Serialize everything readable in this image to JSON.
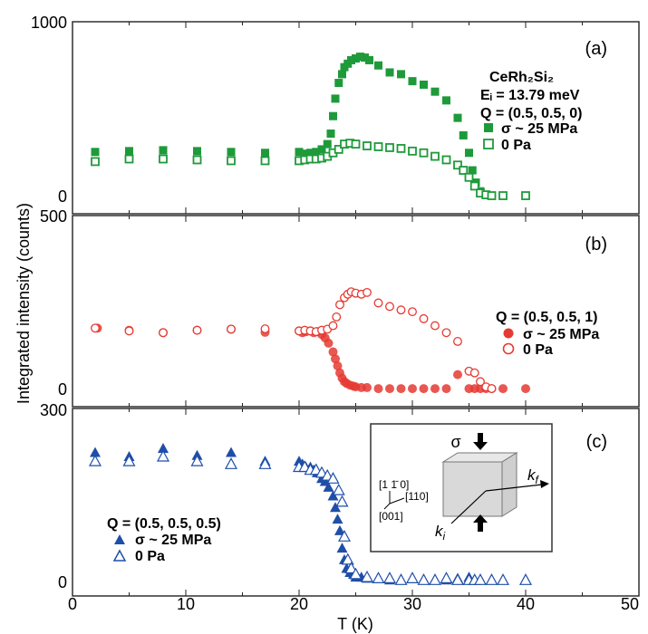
{
  "figure": {
    "ylabel": "Integrated intensity (counts)",
    "xlabel": "T (K)",
    "x_ticks": [
      "0",
      "10",
      "20",
      "30",
      "40",
      "50"
    ]
  },
  "chart_data": [
    {
      "type": "scatter",
      "panel": "(a)",
      "xlim": [
        0,
        50
      ],
      "ylim": [
        0,
        1000
      ],
      "y_ticks": [
        "0",
        "1000"
      ],
      "legend": {
        "position": "right",
        "lines": [
          {
            "text": "CeRh₂Si₂"
          },
          {
            "text": "Eᵢ = 13.79 meV"
          },
          {
            "text": "Q = (0.5, 0.5, 0)"
          }
        ]
      },
      "color": "#1f9a3a",
      "marker": "square",
      "series": [
        {
          "name": "σ ~ 25 MPa",
          "filled": true,
          "x": [
            2,
            5,
            8,
            11,
            14,
            17,
            20,
            20.5,
            21,
            21.5,
            22,
            22.5,
            22.8,
            23,
            23.2,
            23.5,
            23.8,
            24,
            24.3,
            24.6,
            25,
            25.4,
            25.8,
            26.2,
            27,
            28,
            29,
            30,
            31,
            32,
            33,
            34,
            34.5,
            35,
            35.3,
            35.6,
            36,
            36.5,
            37,
            38,
            40
          ],
          "y": [
            255,
            260,
            265,
            260,
            255,
            250,
            255,
            245,
            250,
            255,
            270,
            300,
            360,
            460,
            560,
            650,
            700,
            740,
            760,
            780,
            790,
            800,
            795,
            780,
            750,
            710,
            700,
            660,
            640,
            600,
            550,
            450,
            350,
            250,
            150,
            80,
            30,
            10,
            5,
            5,
            5
          ]
        },
        {
          "name": "0 Pa",
          "filled": false,
          "x": [
            2,
            5,
            8,
            11,
            14,
            17,
            20,
            20.5,
            21,
            21.5,
            22,
            22.5,
            23,
            23.5,
            24,
            24.5,
            25,
            26,
            27,
            28,
            29,
            30,
            31,
            32,
            33,
            34,
            34.5,
            35,
            35.5,
            36,
            36.5,
            37,
            38,
            40
          ],
          "y": [
            200,
            215,
            215,
            210,
            205,
            205,
            205,
            210,
            215,
            215,
            220,
            230,
            250,
            270,
            300,
            305,
            300,
            290,
            285,
            280,
            275,
            260,
            250,
            230,
            210,
            180,
            150,
            110,
            60,
            20,
            10,
            5,
            5,
            5
          ]
        }
      ]
    },
    {
      "type": "scatter",
      "panel": "(b)",
      "xlim": [
        0,
        50
      ],
      "ylim": [
        0,
        500
      ],
      "y_ticks": [
        "0",
        "500"
      ],
      "legend": {
        "position": "right",
        "lines": [
          {
            "text": "Q = (0.5, 0.5, 1)"
          }
        ]
      },
      "color": "#e53a33",
      "marker": "circle",
      "series": [
        {
          "name": "σ ~ 25 MPa",
          "filled": true,
          "x": [
            2.2,
            5,
            8,
            11,
            14,
            17,
            20,
            20.3,
            20.6,
            21,
            21.3,
            21.6,
            22,
            22.3,
            22.6,
            23,
            23.2,
            23.4,
            23.6,
            23.8,
            24,
            24.2,
            24.5,
            24.8,
            25,
            25.5,
            26,
            27,
            28,
            29,
            30,
            31,
            32,
            33,
            34,
            35,
            35.5,
            36,
            36.5,
            37,
            38,
            40
          ],
          "y": [
            178,
            172,
            165,
            172,
            175,
            166,
            170,
            165,
            168,
            170,
            165,
            168,
            160,
            150,
            135,
            110,
            90,
            70,
            50,
            35,
            25,
            20,
            15,
            12,
            10,
            8,
            8,
            5,
            5,
            5,
            5,
            5,
            5,
            5,
            45,
            5,
            5,
            5,
            5,
            5,
            5,
            5
          ]
        },
        {
          "name": "0 Pa",
          "filled": false,
          "x": [
            2,
            5,
            8,
            11,
            14,
            17,
            20,
            20.5,
            21,
            21.5,
            22,
            22.5,
            23,
            23.3,
            23.6,
            24,
            24.3,
            24.6,
            25,
            25.5,
            26,
            27,
            28,
            29,
            30,
            31,
            32,
            33,
            34,
            35,
            35.5,
            36,
            36.5,
            37
          ],
          "y": [
            178,
            170,
            165,
            172,
            175,
            176,
            170,
            172,
            170,
            168,
            172,
            175,
            185,
            210,
            245,
            265,
            275,
            282,
            278,
            275,
            280,
            250,
            240,
            230,
            225,
            205,
            185,
            165,
            140,
            55,
            50,
            25,
            10,
            5
          ]
        }
      ]
    },
    {
      "type": "scatter",
      "panel": "(c)",
      "xlim": [
        0,
        50
      ],
      "ylim": [
        0,
        300
      ],
      "y_ticks": [
        "0",
        "300"
      ],
      "legend": {
        "position": "left",
        "lines": [
          {
            "text": "Q = (0.5, 0.5, 0.5)"
          }
        ]
      },
      "color": "#1f4ea8",
      "marker": "triangle",
      "series": [
        {
          "name": "σ ~ 25 MPa",
          "filled": true,
          "x": [
            2,
            5,
            8,
            11,
            14,
            17,
            20,
            20.3,
            20.6,
            21,
            21.3,
            21.6,
            22,
            22.3,
            22.6,
            23,
            23.2,
            23.4,
            23.6,
            23.8,
            24,
            24.2,
            24.5,
            24.8,
            25,
            25.5,
            26,
            27,
            28,
            29,
            30,
            31,
            32,
            33,
            34,
            35,
            35.5,
            36,
            37,
            40
          ],
          "y": [
            225,
            218,
            232,
            220,
            225,
            210,
            210,
            205,
            200,
            200,
            195,
            190,
            180,
            175,
            165,
            150,
            130,
            110,
            90,
            60,
            40,
            25,
            18,
            15,
            10,
            10,
            8,
            8,
            5,
            5,
            8,
            5,
            5,
            5,
            8,
            10,
            5,
            5,
            5,
            5
          ]
        },
        {
          "name": "0 Pa",
          "filled": false,
          "x": [
            2,
            5,
            8,
            11,
            14,
            17,
            20,
            20.5,
            21,
            21.5,
            22,
            22.5,
            23,
            23.5,
            23.8,
            24,
            24.3,
            24.6,
            25,
            26,
            27,
            28,
            29,
            30,
            31,
            32,
            33,
            34,
            35,
            35.5,
            36,
            37,
            38,
            40
          ],
          "y": [
            210,
            210,
            218,
            210,
            205,
            205,
            200,
            200,
            195,
            195,
            190,
            185,
            180,
            160,
            140,
            80,
            40,
            25,
            15,
            10,
            8,
            8,
            5,
            8,
            5,
            5,
            8,
            5,
            5,
            5,
            5,
            5,
            5,
            5
          ]
        }
      ],
      "inset": {
        "stress_label": "σ",
        "axis_1": "[1 1̄ 0]",
        "axis_2": "[110]",
        "axis_3": "[001]",
        "kf": "k",
        "kf_sub": "f",
        "ki": "k",
        "ki_sub": "i"
      }
    }
  ]
}
